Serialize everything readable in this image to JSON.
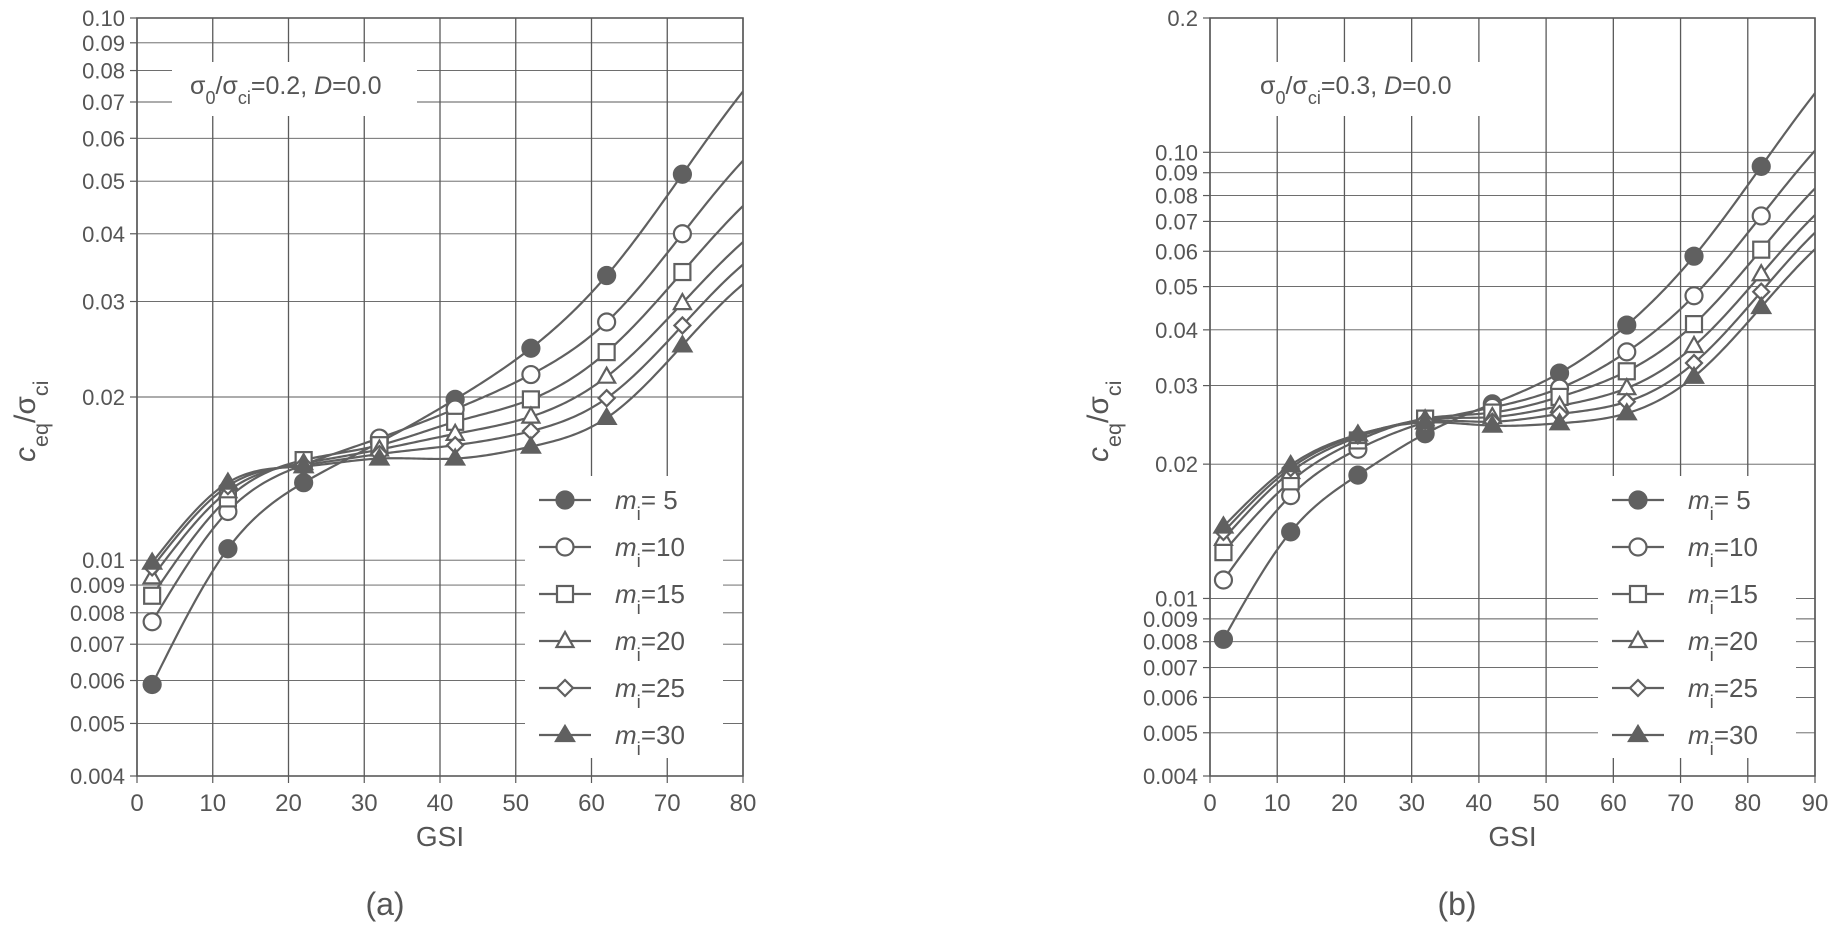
{
  "colors": {
    "line": "#606060",
    "grid": "#5a5a5a",
    "text": "#555555",
    "background": "#ffffff"
  },
  "chart_data": [
    {
      "type": "line",
      "panel_label": "(a)",
      "annotation": {
        "parts": [
          "σ",
          "0",
          "/σ",
          "ci",
          "=0.2, ",
          "D",
          "=0.0"
        ]
      },
      "xlabel": "GSI",
      "ylabel": {
        "parts": [
          "c",
          "eq",
          "/σ",
          "ci"
        ]
      },
      "xlim": [
        0,
        80
      ],
      "ylim": [
        0.004,
        0.1
      ],
      "y_scale": "log",
      "grid": true,
      "legend_position": "lower-right",
      "x_ticks": [
        "0",
        "10",
        "20",
        "30",
        "40",
        "50",
        "60",
        "70",
        "80"
      ],
      "y_ticks": [
        "0.004",
        "0.005",
        "0.006",
        "0.007",
        "0.008",
        "0.009",
        "0.01",
        "0.02",
        "0.03",
        "0.04",
        "0.05",
        "0.06",
        "0.07",
        "0.08",
        "0.09",
        "0.10"
      ],
      "x": [
        2,
        12,
        22,
        32,
        42,
        52,
        62,
        72
      ],
      "series": [
        {
          "name": "mi= 5",
          "label_parts": [
            "m",
            "i",
            "= 5"
          ],
          "marker": "filled-circle",
          "values": [
            0.0059,
            0.0105,
            0.0139,
            0.0165,
            0.0198,
            0.0246,
            0.0335,
            0.0515
          ]
        },
        {
          "name": "mi=10",
          "label_parts": [
            "m",
            "i",
            "=10"
          ],
          "marker": "open-circle",
          "values": [
            0.0077,
            0.0123,
            0.015,
            0.0168,
            0.019,
            0.022,
            0.0275,
            0.04
          ]
        },
        {
          "name": "mi=15",
          "label_parts": [
            "m",
            "i",
            "=15"
          ],
          "marker": "open-square",
          "values": [
            0.0086,
            0.013,
            0.0153,
            0.0163,
            0.018,
            0.0198,
            0.0242,
            0.034
          ]
        },
        {
          "name": "mi=20",
          "label_parts": [
            "m",
            "i",
            "=20"
          ],
          "marker": "open-triangle",
          "values": [
            0.0093,
            0.0134,
            0.0151,
            0.016,
            0.0171,
            0.0184,
            0.0218,
            0.0298
          ]
        },
        {
          "name": "mi=25",
          "label_parts": [
            "m",
            "i",
            "=25"
          ],
          "marker": "open-diamond",
          "values": [
            0.0097,
            0.0137,
            0.015,
            0.0157,
            0.0163,
            0.0173,
            0.0199,
            0.0271
          ]
        },
        {
          "name": "mi=30",
          "label_parts": [
            "m",
            "i",
            "=30"
          ],
          "marker": "filled-triangle",
          "values": [
            0.0099,
            0.0139,
            0.0149,
            0.0154,
            0.0154,
            0.0162,
            0.0183,
            0.0249
          ]
        }
      ]
    },
    {
      "type": "line",
      "panel_label": "(b)",
      "annotation": {
        "parts": [
          "σ",
          "0",
          "/σ",
          "ci",
          "=0.3, ",
          "D",
          "=0.0"
        ]
      },
      "xlabel": "GSI",
      "ylabel": {
        "parts": [
          "c",
          "eq",
          "/σ",
          "ci"
        ]
      },
      "xlim": [
        0,
        90
      ],
      "ylim": [
        0.004,
        0.2
      ],
      "y_scale": "log",
      "grid": true,
      "legend_position": "lower-right",
      "x_ticks": [
        "0",
        "10",
        "20",
        "30",
        "40",
        "50",
        "60",
        "70",
        "80",
        "90"
      ],
      "y_ticks": [
        "0.004",
        "0.005",
        "0.006",
        "0.007",
        "0.008",
        "0.009",
        "0.01",
        "0.02",
        "0.03",
        "0.04",
        "0.05",
        "0.06",
        "0.07",
        "0.08",
        "0.09",
        "0.10",
        "0.2"
      ],
      "x": [
        2,
        12,
        22,
        32,
        42,
        52,
        62,
        72,
        82
      ],
      "series": [
        {
          "name": "mi= 5",
          "label_parts": [
            "m",
            "i",
            "= 5"
          ],
          "marker": "filled-circle",
          "values": [
            0.0081,
            0.0141,
            0.0189,
            0.0234,
            0.0273,
            0.032,
            0.041,
            0.0585,
            0.093
          ]
        },
        {
          "name": "mi=10",
          "label_parts": [
            "m",
            "i",
            "=10"
          ],
          "marker": "open-circle",
          "values": [
            0.011,
            0.017,
            0.0216,
            0.0248,
            0.0268,
            0.0296,
            0.0357,
            0.0477,
            0.072
          ]
        },
        {
          "name": "mi=15",
          "label_parts": [
            "m",
            "i",
            "=15"
          ],
          "marker": "open-square",
          "values": [
            0.0127,
            0.0183,
            0.0226,
            0.0253,
            0.0261,
            0.0283,
            0.0323,
            0.0412,
            0.0605
          ]
        },
        {
          "name": "mi=20",
          "label_parts": [
            "m",
            "i",
            "=20"
          ],
          "marker": "open-triangle",
          "values": [
            0.0136,
            0.0192,
            0.023,
            0.0252,
            0.0255,
            0.027,
            0.0296,
            0.0368,
            0.0533
          ]
        },
        {
          "name": "mi=25",
          "label_parts": [
            "m",
            "i",
            "=25"
          ],
          "marker": "open-diamond",
          "values": [
            0.0141,
            0.0196,
            0.0232,
            0.025,
            0.0249,
            0.0259,
            0.0276,
            0.0337,
            0.0487
          ]
        },
        {
          "name": "mi=30",
          "label_parts": [
            "m",
            "i",
            "=30"
          ],
          "marker": "filled-triangle",
          "values": [
            0.0145,
            0.0199,
            0.0233,
            0.0248,
            0.0244,
            0.0247,
            0.026,
            0.0314,
            0.045
          ]
        }
      ]
    }
  ]
}
